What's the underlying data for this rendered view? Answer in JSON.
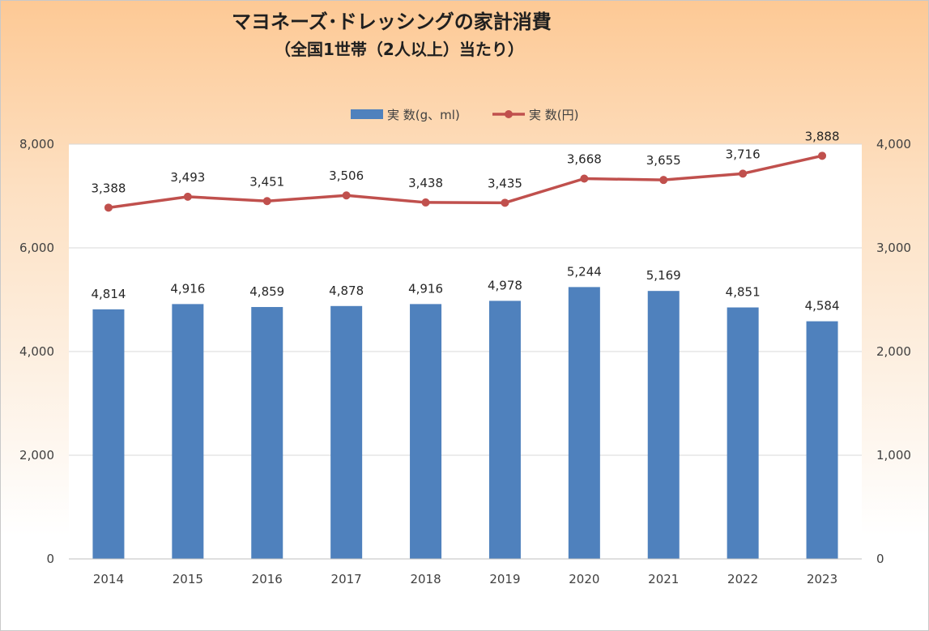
{
  "chart_data": {
    "type": "bar+line",
    "title": "マヨネーズ･ドレッシングの家計消費",
    "subtitle": "（全国1世帯（2人以上）当たり）",
    "categories": [
      "2014",
      "2015",
      "2016",
      "2017",
      "2018",
      "2019",
      "2020",
      "2021",
      "2022",
      "2023"
    ],
    "series": [
      {
        "name": "実 数(g、ml)",
        "type": "bar",
        "axis": "left",
        "color": "#4f81bd",
        "values": [
          4814,
          4916,
          4859,
          4878,
          4916,
          4978,
          5244,
          5169,
          4851,
          4584
        ],
        "labels": [
          "4,814",
          "4,916",
          "4,859",
          "4,878",
          "4,916",
          "4,978",
          "5,244",
          "5,169",
          "4,851",
          "4,584"
        ]
      },
      {
        "name": "実 数(円)",
        "type": "line",
        "axis": "right",
        "color": "#c0504d",
        "values": [
          3388,
          3493,
          3451,
          3506,
          3438,
          3435,
          3668,
          3655,
          3716,
          3888
        ],
        "labels": [
          "3,388",
          "3,493",
          "3,451",
          "3,506",
          "3,438",
          "3,435",
          "3,668",
          "3,655",
          "3,716",
          "3,888"
        ]
      }
    ],
    "y_left": {
      "range": [
        0,
        8000
      ],
      "ticks": [
        0,
        2000,
        4000,
        6000,
        8000
      ],
      "tick_labels": [
        "0",
        "2,000",
        "4,000",
        "6,000",
        "8,000"
      ]
    },
    "y_right": {
      "range": [
        0,
        4000
      ],
      "ticks": [
        0,
        1000,
        2000,
        3000,
        4000
      ],
      "tick_labels": [
        "0",
        "1,000",
        "2,000",
        "3,000",
        "4,000"
      ]
    },
    "grid": true,
    "legend_position": "top-center"
  }
}
